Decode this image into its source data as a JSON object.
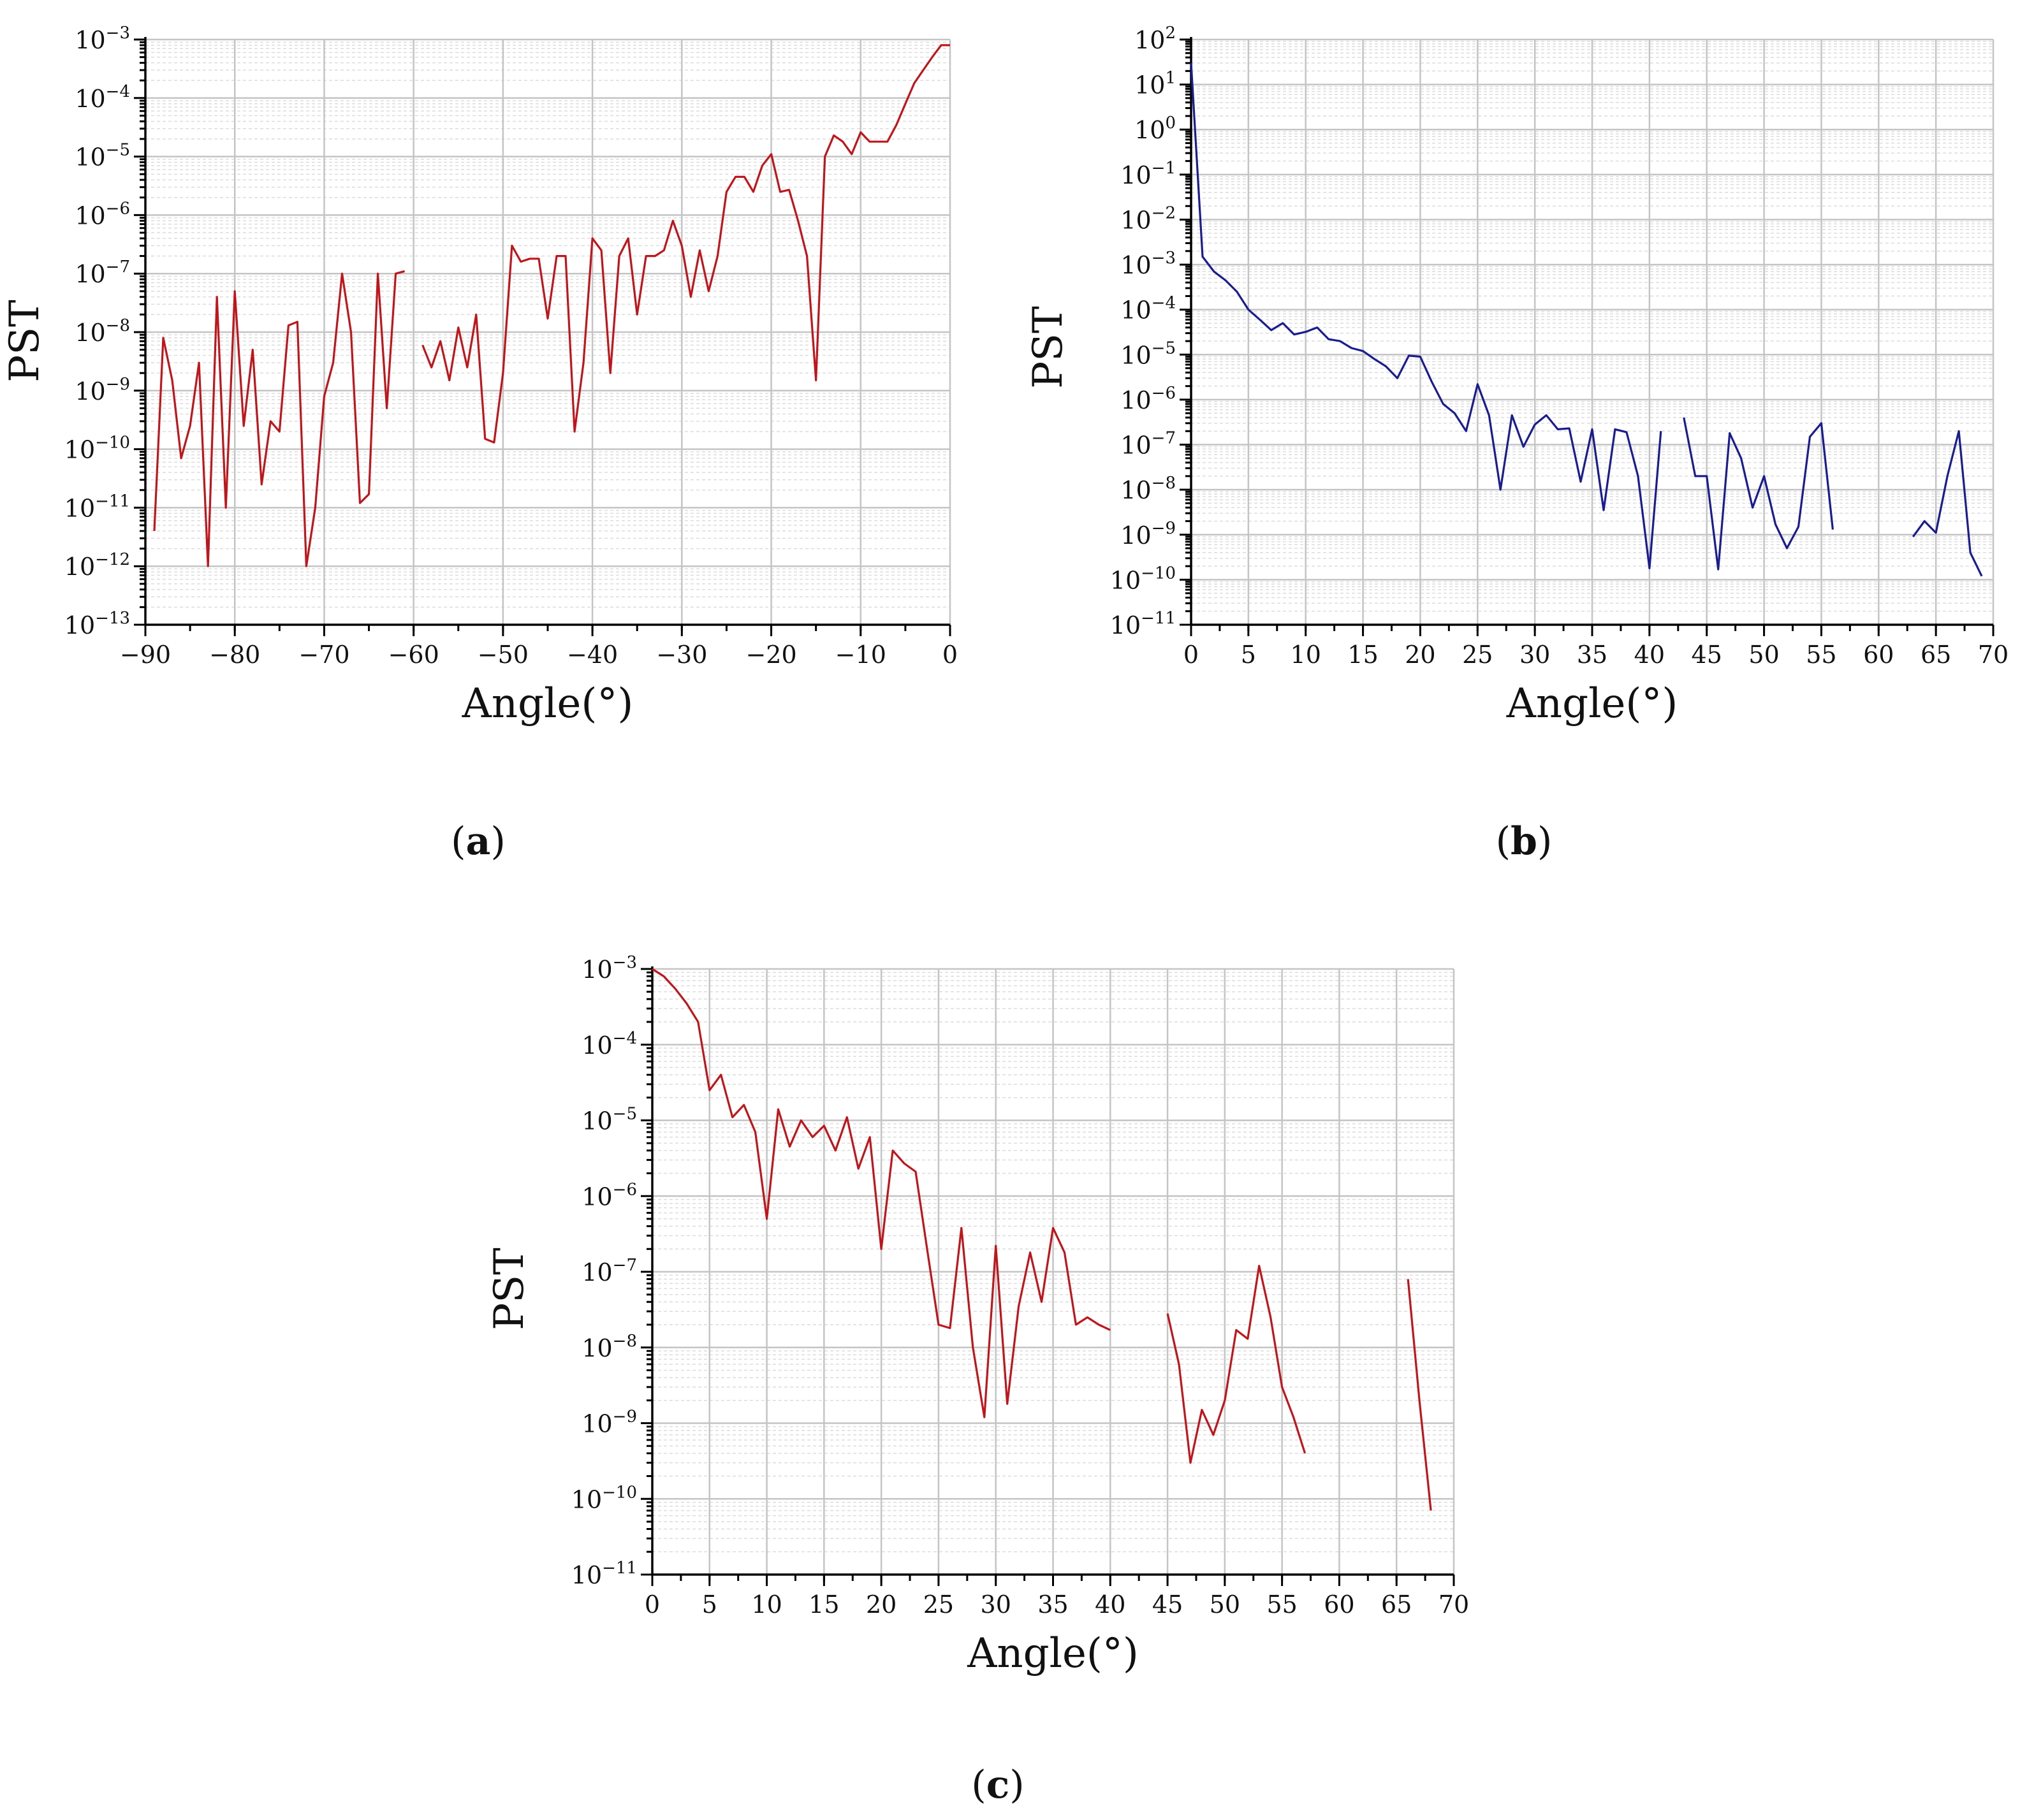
{
  "figure": {
    "panels": [
      {
        "id": "a",
        "caption": "(a)",
        "color": "#c0161b"
      },
      {
        "id": "b",
        "caption": "(b)",
        "color": "#1a1c8f"
      },
      {
        "id": "c",
        "caption": "(c)",
        "color": "#c0161b"
      }
    ]
  },
  "chart_data": [
    {
      "id": "a",
      "type": "line",
      "title": "",
      "caption": "(a)",
      "xlabel": "Angle(°)",
      "ylabel": "PST",
      "yscale": "log",
      "xlim": [
        -90,
        0
      ],
      "ylim_exp": [
        -13,
        -3
      ],
      "xticks": [
        -90,
        -80,
        -70,
        -60,
        -50,
        -40,
        -30,
        -20,
        -10,
        0
      ],
      "xtick_labels": [
        "−90",
        "−80",
        "−70",
        "−60",
        "−50",
        "−40",
        "−30",
        "−20",
        "−10",
        "0"
      ],
      "yticks_exp": [
        -13,
        -12,
        -11,
        -10,
        -9,
        -8,
        -7,
        -6,
        -5,
        -4,
        -3
      ],
      "grid": true,
      "color": "#c0161b",
      "series": [
        {
          "name": "PST",
          "segments": [
            [
              [
                -89,
                4e-12
              ],
              [
                -88,
                8e-09
              ],
              [
                -87,
                1.5e-09
              ],
              [
                -86,
                7e-11
              ],
              [
                -85,
                2.5e-10
              ],
              [
                -84,
                3e-09
              ],
              [
                -83,
                1e-12
              ],
              [
                -82,
                4e-08
              ],
              [
                -81,
                1e-11
              ],
              [
                -80,
                5e-08
              ],
              [
                -79,
                2.5e-10
              ],
              [
                -78,
                5e-09
              ],
              [
                -77,
                2.5e-11
              ],
              [
                -76,
                3e-10
              ],
              [
                -75,
                2e-10
              ],
              [
                -74,
                1.3e-08
              ],
              [
                -73,
                1.5e-08
              ],
              [
                -72,
                1e-12
              ],
              [
                -71,
                1e-11
              ],
              [
                -70,
                8e-10
              ],
              [
                -69,
                3e-09
              ],
              [
                -68,
                1e-07
              ],
              [
                -67,
                1e-08
              ],
              [
                -66,
                1.2e-11
              ],
              [
                -65,
                1.7e-11
              ],
              [
                -64,
                1e-07
              ],
              [
                -63,
                5e-10
              ],
              [
                -62,
                1e-07
              ],
              [
                -61,
                1.1e-07
              ]
            ],
            [
              [
                -59,
                6e-09
              ],
              [
                -58,
                2.5e-09
              ],
              [
                -57,
                7e-09
              ],
              [
                -56,
                1.5e-09
              ],
              [
                -55,
                1.2e-08
              ],
              [
                -54,
                2.5e-09
              ],
              [
                -53,
                2e-08
              ],
              [
                -52,
                1.5e-10
              ],
              [
                -51,
                1.3e-10
              ],
              [
                -50,
                2e-09
              ],
              [
                -49,
                3e-07
              ],
              [
                -48,
                1.6e-07
              ],
              [
                -47,
                1.8e-07
              ],
              [
                -46,
                1.8e-07
              ],
              [
                -45,
                1.7e-08
              ],
              [
                -44,
                2e-07
              ],
              [
                -43,
                2e-07
              ],
              [
                -42,
                2e-10
              ],
              [
                -41,
                3e-09
              ],
              [
                -40,
                4e-07
              ],
              [
                -39,
                2.5e-07
              ],
              [
                -38,
                2e-09
              ],
              [
                -37,
                2e-07
              ],
              [
                -36,
                4e-07
              ],
              [
                -35,
                2e-08
              ],
              [
                -34,
                2e-07
              ],
              [
                -33,
                2e-07
              ],
              [
                -32,
                2.5e-07
              ],
              [
                -31,
                8e-07
              ],
              [
                -30,
                3e-07
              ],
              [
                -29,
                4e-08
              ],
              [
                -28,
                2.5e-07
              ],
              [
                -27,
                5e-08
              ],
              [
                -26,
                2e-07
              ],
              [
                -25,
                2.5e-06
              ],
              [
                -24,
                4.5e-06
              ],
              [
                -23,
                4.5e-06
              ],
              [
                -22,
                2.5e-06
              ],
              [
                -21,
                7e-06
              ],
              [
                -20,
                1.1e-05
              ],
              [
                -19,
                2.5e-06
              ],
              [
                -18,
                2.7e-06
              ],
              [
                -17,
                8e-07
              ],
              [
                -16,
                2e-07
              ],
              [
                -15,
                1.5e-09
              ],
              [
                -14,
                1e-05
              ],
              [
                -13,
                2.3e-05
              ],
              [
                -12,
                1.8e-05
              ],
              [
                -11,
                1.1e-05
              ],
              [
                -10,
                2.6e-05
              ],
              [
                -9,
                1.8e-05
              ],
              [
                -8,
                1.8e-05
              ],
              [
                -7,
                1.8e-05
              ],
              [
                -6,
                3.5e-05
              ],
              [
                -5,
                8e-05
              ],
              [
                -4,
                0.00018
              ],
              [
                -3,
                0.0003
              ],
              [
                -2,
                0.0005
              ],
              [
                -1,
                0.0008
              ],
              [
                0,
                0.0008
              ]
            ]
          ]
        }
      ]
    },
    {
      "id": "b",
      "type": "line",
      "title": "",
      "caption": "(b)",
      "xlabel": "Angle(°)",
      "ylabel": "PST",
      "yscale": "log",
      "xlim": [
        0,
        70
      ],
      "ylim_exp": [
        -11,
        2
      ],
      "xticks": [
        0,
        5,
        10,
        15,
        20,
        25,
        30,
        35,
        40,
        45,
        50,
        55,
        60,
        65,
        70
      ],
      "xtick_labels": [
        "0",
        "5",
        "10",
        "15",
        "20",
        "25",
        "30",
        "35",
        "40",
        "45",
        "50",
        "55",
        "60",
        "65",
        "70"
      ],
      "yticks_exp": [
        -11,
        -10,
        -9,
        -8,
        -7,
        -6,
        -5,
        -4,
        -3,
        -2,
        -1,
        0,
        1,
        2
      ],
      "grid": true,
      "color": "#1a1c8f",
      "series": [
        {
          "name": "PST",
          "segments": [
            [
              [
                0,
                30
              ],
              [
                1,
                0.0015
              ],
              [
                2,
                0.0007
              ],
              [
                3,
                0.00045
              ],
              [
                4,
                0.00025
              ],
              [
                5,
                0.0001
              ],
              [
                6,
                6e-05
              ],
              [
                7,
                3.5e-05
              ],
              [
                8,
                5e-05
              ],
              [
                9,
                2.8e-05
              ],
              [
                10,
                3.2e-05
              ],
              [
                11,
                4e-05
              ],
              [
                12,
                2.2e-05
              ],
              [
                13,
                2e-05
              ],
              [
                14,
                1.4e-05
              ],
              [
                15,
                1.2e-05
              ],
              [
                16,
                8e-06
              ],
              [
                17,
                5.5e-06
              ],
              [
                18,
                3e-06
              ],
              [
                19,
                9.5e-06
              ],
              [
                20,
                9e-06
              ],
              [
                21,
                2.5e-06
              ],
              [
                22,
                8e-07
              ],
              [
                23,
                5e-07
              ],
              [
                24,
                2e-07
              ],
              [
                25,
                2.2e-06
              ],
              [
                26,
                4.5e-07
              ],
              [
                27,
                1e-08
              ],
              [
                28,
                4.5e-07
              ],
              [
                29,
                9e-08
              ],
              [
                30,
                2.8e-07
              ],
              [
                31,
                4.5e-07
              ],
              [
                32,
                2.2e-07
              ],
              [
                33,
                2.3e-07
              ],
              [
                34,
                1.5e-08
              ],
              [
                35,
                2.2e-07
              ],
              [
                36,
                3.5e-09
              ],
              [
                37,
                2.2e-07
              ],
              [
                38,
                1.9e-07
              ],
              [
                39,
                2e-08
              ],
              [
                40,
                1.8e-10
              ],
              [
                41,
                2e-07
              ]
            ],
            [
              [
                43,
                4e-07
              ],
              [
                44,
                2e-08
              ],
              [
                45,
                2e-08
              ],
              [
                46,
                1.7e-10
              ],
              [
                47,
                1.8e-07
              ],
              [
                48,
                5e-08
              ],
              [
                49,
                4e-09
              ],
              [
                50,
                2e-08
              ],
              [
                51,
                1.7e-09
              ],
              [
                52,
                5e-10
              ],
              [
                53,
                1.5e-09
              ],
              [
                54,
                1.5e-07
              ],
              [
                55,
                3e-07
              ],
              [
                56,
                1.3e-09
              ]
            ],
            [
              [
                63,
                9e-10
              ],
              [
                64,
                2e-09
              ],
              [
                65,
                1.1e-09
              ],
              [
                66,
                2e-08
              ],
              [
                67,
                2e-07
              ],
              [
                68,
                4e-10
              ],
              [
                69,
                1.2e-10
              ]
            ]
          ]
        }
      ]
    },
    {
      "id": "c",
      "type": "line",
      "title": "",
      "caption": "(c)",
      "xlabel": "Angle(°)",
      "ylabel": "PST",
      "yscale": "log",
      "xlim": [
        0,
        70
      ],
      "ylim_exp": [
        -11,
        -3
      ],
      "xticks": [
        0,
        5,
        10,
        15,
        20,
        25,
        30,
        35,
        40,
        45,
        50,
        55,
        60,
        65,
        70
      ],
      "xtick_labels": [
        "0",
        "5",
        "10",
        "15",
        "20",
        "25",
        "30",
        "35",
        "40",
        "45",
        "50",
        "55",
        "60",
        "65",
        "70"
      ],
      "yticks_exp": [
        -11,
        -10,
        -9,
        -8,
        -7,
        -6,
        -5,
        -4,
        -3
      ],
      "grid": true,
      "color": "#c0161b",
      "series": [
        {
          "name": "PST",
          "segments": [
            [
              [
                0,
                0.001
              ],
              [
                1,
                0.0008
              ],
              [
                2,
                0.00055
              ],
              [
                3,
                0.00035
              ],
              [
                4,
                0.0002
              ],
              [
                5,
                2.5e-05
              ],
              [
                6,
                4e-05
              ],
              [
                7,
                1.1e-05
              ],
              [
                8,
                1.6e-05
              ],
              [
                9,
                7e-06
              ],
              [
                10,
                5e-07
              ],
              [
                11,
                1.4e-05
              ],
              [
                12,
                4.5e-06
              ],
              [
                13,
                1e-05
              ],
              [
                14,
                6e-06
              ],
              [
                15,
                8.5e-06
              ],
              [
                16,
                4e-06
              ],
              [
                17,
                1.1e-05
              ],
              [
                18,
                2.3e-06
              ],
              [
                19,
                6e-06
              ],
              [
                20,
                2e-07
              ],
              [
                21,
                4e-06
              ],
              [
                22,
                2.7e-06
              ],
              [
                23,
                2.1e-06
              ],
              [
                24,
                2e-07
              ],
              [
                25,
                2e-08
              ],
              [
                26,
                1.8e-08
              ],
              [
                27,
                3.8e-07
              ],
              [
                28,
                1e-08
              ],
              [
                29,
                1.2e-09
              ],
              [
                30,
                2.2e-07
              ],
              [
                31,
                1.8e-09
              ],
              [
                32,
                3.5e-08
              ],
              [
                33,
                1.8e-07
              ],
              [
                34,
                4e-08
              ],
              [
                35,
                3.8e-07
              ],
              [
                36,
                1.8e-07
              ],
              [
                37,
                2e-08
              ],
              [
                38,
                2.5e-08
              ],
              [
                39,
                2e-08
              ],
              [
                40,
                1.7e-08
              ]
            ],
            [
              [
                45,
                2.8e-08
              ],
              [
                46,
                6e-09
              ],
              [
                47,
                3e-10
              ],
              [
                48,
                1.5e-09
              ],
              [
                49,
                7e-10
              ],
              [
                50,
                2e-09
              ],
              [
                51,
                1.7e-08
              ],
              [
                52,
                1.3e-08
              ],
              [
                53,
                1.2e-07
              ],
              [
                54,
                2.5e-08
              ],
              [
                55,
                3e-09
              ],
              [
                56,
                1.2e-09
              ],
              [
                57,
                4e-10
              ]
            ],
            [
              [
                66,
                8e-08
              ],
              [
                67,
                2e-09
              ],
              [
                68,
                7e-11
              ]
            ]
          ]
        }
      ]
    }
  ]
}
